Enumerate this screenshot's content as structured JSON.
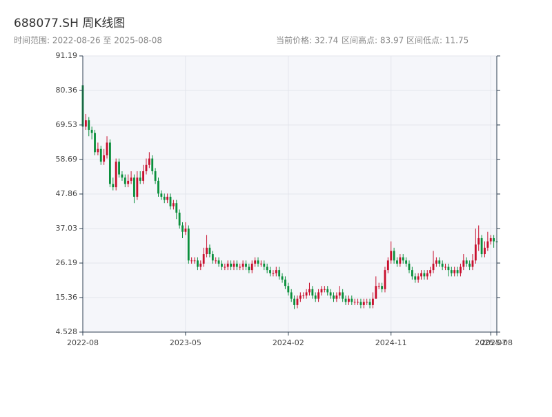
{
  "chart_data": {
    "type": "candlestick",
    "title": "688077.SH 周K线图",
    "subtitle": "时间范围: 2022-08-26 至 2025-08-08",
    "stats": [
      "当前价格: 32.74",
      "区间高点: 83.97",
      "区间低点: 11.75"
    ],
    "up_color": "#c8102e",
    "down_color": "#0a8f3c",
    "grid": true,
    "ylim": [
      4.528,
      91.19
    ],
    "yticks": [
      4.528,
      15.36,
      26.19,
      37.03,
      47.86,
      58.69,
      69.53,
      80.36,
      91.19
    ],
    "categories": [
      "2022-08",
      null,
      null,
      null,
      null,
      null,
      null,
      null,
      null,
      null,
      null,
      null,
      null,
      null,
      null,
      null,
      null,
      null,
      null,
      null,
      null,
      null,
      null,
      null,
      null,
      null,
      null,
      null,
      null,
      null,
      null,
      null,
      null,
      null,
      "2023-05",
      null,
      null,
      null,
      null,
      null,
      null,
      null,
      null,
      null,
      null,
      null,
      null,
      null,
      null,
      null,
      null,
      null,
      null,
      null,
      null,
      null,
      null,
      null,
      null,
      null,
      null,
      null,
      null,
      null,
      null,
      null,
      null,
      null,
      "2024-02",
      null,
      null,
      null,
      null,
      null,
      null,
      null,
      null,
      null,
      null,
      null,
      null,
      null,
      null,
      null,
      null,
      null,
      null,
      null,
      null,
      null,
      null,
      null,
      null,
      null,
      null,
      null,
      null,
      null,
      null,
      null,
      null,
      null,
      "2024-11",
      null,
      null,
      null,
      null,
      null,
      null,
      null,
      null,
      null,
      null,
      null,
      null,
      null,
      null,
      null,
      null,
      null,
      null,
      null,
      null,
      null,
      null,
      null,
      null,
      null,
      null,
      null,
      null,
      null,
      null,
      null,
      null,
      "2025-07",
      null,
      "2025-08"
    ],
    "open": [
      82,
      69,
      71,
      68,
      67,
      61,
      62,
      58,
      60,
      64,
      51,
      50,
      58,
      54,
      53,
      51,
      52,
      53,
      47,
      53,
      52,
      55,
      57,
      59,
      55,
      52,
      48,
      47,
      46,
      47,
      44,
      45,
      42,
      38,
      36,
      37,
      27,
      27,
      27,
      25,
      26,
      29,
      31,
      29,
      27,
      27,
      26,
      25,
      25,
      26,
      25,
      26,
      25,
      25,
      26,
      25,
      24,
      26,
      27,
      26,
      26,
      25,
      24,
      23,
      23,
      24,
      22,
      21,
      19,
      17,
      15,
      13,
      15,
      16,
      16,
      17,
      18,
      16,
      15,
      17,
      18,
      18,
      17,
      16,
      15,
      16,
      17,
      15,
      14,
      15,
      14,
      14,
      14,
      13,
      14,
      14,
      13,
      15,
      19,
      19,
      18,
      24,
      27,
      30,
      27,
      26,
      28,
      27,
      26,
      24,
      22,
      21,
      22,
      23,
      22,
      23,
      24,
      26,
      27,
      26,
      25,
      25,
      24,
      23,
      24,
      23,
      25,
      27,
      26,
      25,
      27,
      32,
      34,
      29,
      31,
      33,
      34,
      33
    ],
    "high": [
      83.97,
      73,
      72,
      69,
      68,
      64,
      63,
      62,
      66,
      65,
      53,
      59,
      59,
      55,
      54,
      54,
      55,
      54,
      55,
      55,
      57,
      59,
      61,
      60,
      56,
      53,
      49,
      48,
      48,
      48,
      46,
      46,
      43,
      39,
      39,
      38,
      28,
      28,
      28,
      27,
      31,
      35,
      32,
      30,
      28,
      28,
      27,
      26,
      27,
      27,
      27,
      27,
      26,
      27,
      27,
      26,
      27,
      28,
      28,
      27,
      27,
      26,
      25,
      24,
      25,
      25,
      23,
      22,
      20,
      18,
      16,
      16,
      17,
      17,
      18,
      20,
      19,
      17,
      18,
      19,
      19,
      19,
      18,
      17,
      17,
      19,
      18,
      16,
      16,
      16,
      15,
      15,
      15,
      15,
      15,
      15,
      17,
      22,
      20,
      20,
      25,
      28,
      33,
      31,
      28,
      29,
      29,
      28,
      27,
      25,
      23,
      23,
      24,
      24,
      24,
      25,
      30,
      28,
      28,
      27,
      26,
      26,
      25,
      25,
      25,
      26,
      29,
      28,
      27,
      29,
      37,
      38,
      35,
      33,
      36,
      35,
      35,
      35
    ],
    "low": [
      66,
      68,
      66,
      65,
      60,
      60,
      57,
      57,
      59,
      50,
      49,
      49,
      53,
      52,
      50,
      50,
      51,
      45,
      46,
      51,
      51,
      54,
      56,
      54,
      51,
      47,
      46,
      45,
      45,
      43,
      43,
      40,
      37,
      34,
      35,
      26,
      26,
      26,
      24,
      24,
      25,
      28,
      28,
      26,
      26,
      25,
      24,
      24,
      24,
      24,
      24,
      24,
      24,
      24,
      24,
      23,
      23,
      25,
      25,
      25,
      24,
      23,
      22,
      22,
      22,
      21,
      20,
      18,
      16,
      14,
      11.75,
      12,
      14,
      15,
      15,
      16,
      15,
      14,
      14,
      16,
      17,
      16,
      15,
      14,
      14,
      15,
      14,
      13,
      13,
      13,
      13,
      13,
      12,
      12,
      13,
      12,
      12,
      15,
      18,
      17,
      17,
      23,
      26,
      26,
      25,
      25,
      26,
      25,
      23,
      21,
      20,
      20,
      21,
      21,
      21,
      22,
      23,
      25,
      25,
      24,
      24,
      22,
      22,
      22,
      22,
      22,
      24,
      25,
      24,
      24,
      26,
      30,
      28,
      28,
      30,
      32,
      31,
      30
    ],
    "close": [
      69,
      71,
      68,
      67,
      61,
      62,
      58,
      60,
      64,
      51,
      50,
      58,
      54,
      53,
      51,
      52,
      53,
      47,
      53,
      52,
      55,
      57,
      59,
      55,
      52,
      48,
      47,
      46,
      47,
      44,
      45,
      42,
      38,
      36,
      37,
      27,
      27,
      27,
      25,
      26,
      29,
      31,
      29,
      27,
      27,
      26,
      25,
      25,
      26,
      25,
      26,
      25,
      25,
      26,
      25,
      24,
      26,
      27,
      26,
      26,
      25,
      24,
      23,
      23,
      24,
      22,
      21,
      19,
      17,
      15,
      13,
      15,
      16,
      16,
      17,
      18,
      16,
      15,
      17,
      18,
      18,
      17,
      16,
      15,
      16,
      17,
      15,
      14,
      15,
      14,
      14,
      14,
      13,
      14,
      14,
      13,
      15,
      19,
      19,
      18,
      24,
      27,
      30,
      27,
      26,
      28,
      27,
      26,
      24,
      22,
      21,
      22,
      23,
      22,
      23,
      24,
      26,
      27,
      26,
      25,
      25,
      24,
      23,
      24,
      23,
      25,
      27,
      26,
      25,
      27,
      32,
      34,
      29,
      31,
      33,
      34,
      33,
      32.74
    ]
  }
}
